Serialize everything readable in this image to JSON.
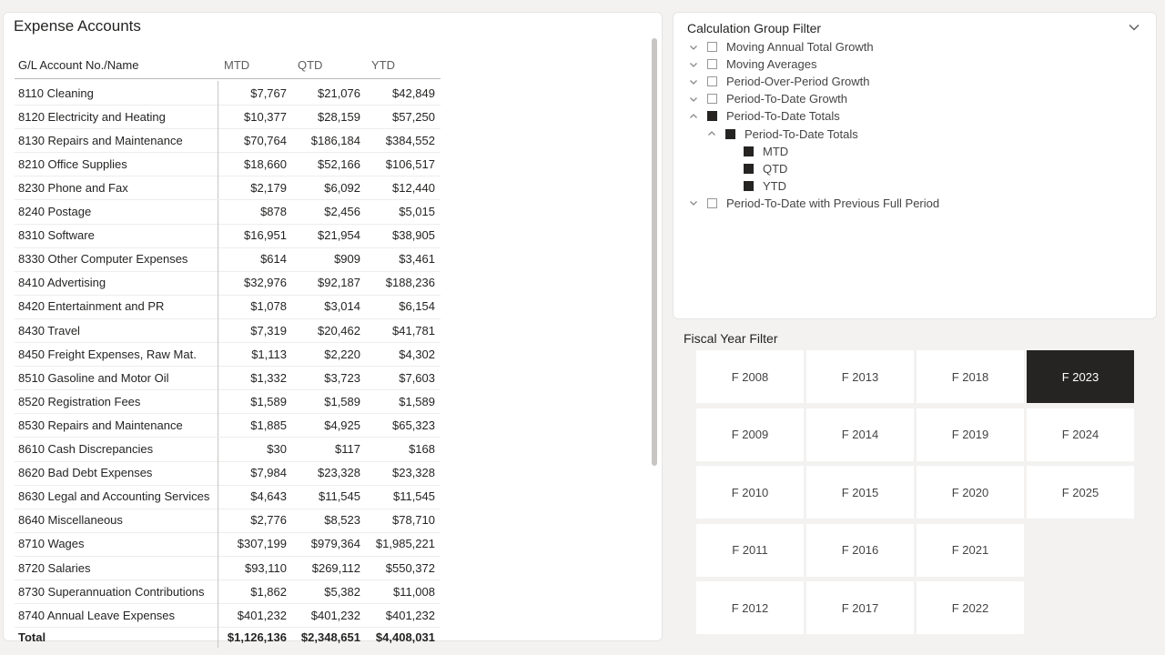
{
  "expense": {
    "title": "Expense Accounts",
    "columns": [
      "G/L Account No./Name",
      "MTD",
      "QTD",
      "YTD"
    ],
    "rows": [
      [
        "8110 Cleaning",
        "$7,767",
        "$21,076",
        "$42,849"
      ],
      [
        "8120 Electricity and Heating",
        "$10,377",
        "$28,159",
        "$57,250"
      ],
      [
        "8130 Repairs and Maintenance",
        "$70,764",
        "$186,184",
        "$384,552"
      ],
      [
        "8210 Office Supplies",
        "$18,660",
        "$52,166",
        "$106,517"
      ],
      [
        "8230 Phone and Fax",
        "$2,179",
        "$6,092",
        "$12,440"
      ],
      [
        "8240 Postage",
        "$878",
        "$2,456",
        "$5,015"
      ],
      [
        "8310 Software",
        "$16,951",
        "$21,954",
        "$38,905"
      ],
      [
        "8330 Other Computer Expenses",
        "$614",
        "$909",
        "$3,461"
      ],
      [
        "8410 Advertising",
        "$32,976",
        "$92,187",
        "$188,236"
      ],
      [
        "8420 Entertainment and PR",
        "$1,078",
        "$3,014",
        "$6,154"
      ],
      [
        "8430 Travel",
        "$7,319",
        "$20,462",
        "$41,781"
      ],
      [
        "8450 Freight Expenses, Raw Mat.",
        "$1,113",
        "$2,220",
        "$4,302"
      ],
      [
        "8510 Gasoline and Motor Oil",
        "$1,332",
        "$3,723",
        "$7,603"
      ],
      [
        "8520 Registration Fees",
        "$1,589",
        "$1,589",
        "$1,589"
      ],
      [
        "8530 Repairs and Maintenance",
        "$1,885",
        "$4,925",
        "$65,323"
      ],
      [
        "8610 Cash Discrepancies",
        "$30",
        "$117",
        "$168"
      ],
      [
        "8620 Bad Debt Expenses",
        "$7,984",
        "$23,328",
        "$23,328"
      ],
      [
        "8630 Legal and Accounting Services",
        "$4,643",
        "$11,545",
        "$11,545"
      ],
      [
        "8640 Miscellaneous",
        "$2,776",
        "$8,523",
        "$78,710"
      ],
      [
        "8710 Wages",
        "$307,199",
        "$979,364",
        "$1,985,221"
      ],
      [
        "8720 Salaries",
        "$93,110",
        "$269,112",
        "$550,372"
      ],
      [
        "8730 Superannuation Contributions",
        "$1,862",
        "$5,382",
        "$11,008"
      ],
      [
        "8740 Annual Leave Expenses",
        "$401,232",
        "$401,232",
        "$401,232"
      ]
    ],
    "total": [
      "Total",
      "$1,126,136",
      "$2,348,651",
      "$4,408,031"
    ]
  },
  "calc_filter": {
    "title": "Calculation Group Filter",
    "items": [
      {
        "label": "Moving Annual Total Growth",
        "level": 0,
        "checked": false,
        "chevron": "down"
      },
      {
        "label": "Moving Averages",
        "level": 0,
        "checked": false,
        "chevron": "down"
      },
      {
        "label": "Period-Over-Period Growth",
        "level": 0,
        "checked": false,
        "chevron": "down"
      },
      {
        "label": "Period-To-Date Growth",
        "level": 0,
        "checked": false,
        "chevron": "down"
      },
      {
        "label": "Period-To-Date Totals",
        "level": 0,
        "checked": true,
        "chevron": "up"
      },
      {
        "label": "Period-To-Date Totals",
        "level": 1,
        "checked": true,
        "chevron": "up"
      },
      {
        "label": "MTD",
        "level": 2,
        "checked": true,
        "chevron": "none"
      },
      {
        "label": "QTD",
        "level": 2,
        "checked": true,
        "chevron": "none"
      },
      {
        "label": "YTD",
        "level": 2,
        "checked": true,
        "chevron": "none"
      },
      {
        "label": "Period-To-Date with Previous Full Period",
        "level": 0,
        "checked": false,
        "chevron": "down"
      }
    ]
  },
  "fiscal_filter": {
    "title": "Fiscal Year Filter",
    "selected": "F 2023",
    "columns": [
      [
        "F 2008",
        "F 2009",
        "F 2010",
        "F 2011",
        "F 2012"
      ],
      [
        "F 2013",
        "F 2014",
        "F 2015",
        "F 2016",
        "F 2017"
      ],
      [
        "F 2018",
        "F 2019",
        "F 2020",
        "F 2021",
        "F 2022"
      ],
      [
        "F 2023",
        "F 2024",
        "F 2025"
      ]
    ]
  },
  "colors": {
    "page_background": "#f3f2f1",
    "panel_background": "#ffffff",
    "selected_tile": "#252423",
    "checked_box": "#252423"
  }
}
